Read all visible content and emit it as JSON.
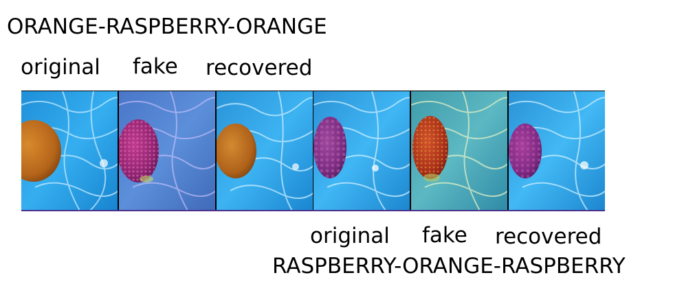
{
  "top": {
    "title": "ORANGE-RASPBERRY-ORANGE",
    "labels": [
      "original",
      "fake",
      "recovered"
    ]
  },
  "bottom": {
    "title": "RASPBERRY-ORANGE-RASPBERRY",
    "labels": [
      "original",
      "fake",
      "recovered"
    ]
  }
}
